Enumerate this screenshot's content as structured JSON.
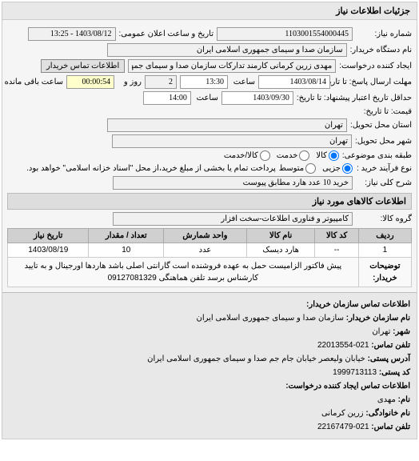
{
  "panel_title": "جزئیات اطلاعات نیاز",
  "fields": {
    "need_no_label": "شماره نیاز:",
    "need_no": "1103001554000445",
    "announce_label": "تاریخ و ساعت اعلان عمومی:",
    "announce_value": "1403/08/12 - 13:25",
    "buyer_org_label": "نام دستگاه خریدار:",
    "buyer_org": "سازمان صدا و سیمای جمهوری اسلامی ایران",
    "requester_label": "ایجاد کننده درخواست:",
    "requester": "مهدی زرین کرمانی کارمند تدارکات سازمان صدا و سیمای جمهوری اسلامی ایرا",
    "contact_btn": "اطلاعات تماس خریدار",
    "reply_deadline_label": "مهلت ارسال پاسخ: تا تاریخ:",
    "reply_date": "1403/08/14",
    "time_label": "ساعت",
    "reply_time": "13:30",
    "remaining_days": "2",
    "day_label": "روز و",
    "remaining_time": "00:00:54",
    "remaining_label": "ساعت باقی مانده",
    "validity_label": "حداقل تاریخ اعتبار پیشنهاد: تا تاریخ:",
    "validity_date": "1403/09/30",
    "validity_time": "14:00",
    "price_label": "قیمت: تا تاریخ:",
    "province_label": "استان محل تحویل:",
    "province": "تهران",
    "city_label": "شهر محل تحویل:",
    "city": "تهران",
    "category_label": "طبقه بندی موضوعی:",
    "cat_goods": "کالا",
    "cat_service": "خدمت",
    "cat_goods_service": "کالا/خدمت",
    "process_label": "نوع فرآیند خرید :",
    "proc_partial": "جزیی",
    "proc_medium": "متوسط",
    "proc_note": "پرداخت تمام یا بخشی از مبلغ خرید،از محل \"اسناد خزانه اسلامی\" خواهد بود.",
    "desc_label": "شرح کلی نیاز:",
    "desc_value": "خرید 10 عدد هارد مطابق پیوست"
  },
  "items_header": "اطلاعات کالاهای مورد نیاز",
  "group_label": "گروه کالا:",
  "group_value": "کامپیوتر و فناوری اطلاعات-سخت افزار",
  "table": {
    "headers": [
      "ردیف",
      "کد کالا",
      "نام کالا",
      "واحد شمارش",
      "تعداد / مقدار",
      "تاریخ نیاز"
    ],
    "row": [
      "1",
      "--",
      "هارد دیسک",
      "عدد",
      "10",
      "1403/08/19"
    ],
    "notes_label": "توضیحات خریدار:",
    "notes": "پیش فاکتور الزامیست حمل به عهده فروشنده است گارانتی اصلی باشد هاردها اورجینال و به تایید کارشناس برسد تلفن هماهنگی 09127081329"
  },
  "contact": {
    "header": "اطلاعات تماس سازمان خریدار:",
    "org_label": "نام سازمان خریدار:",
    "org": "سازمان صدا و سیمای جمهوری اسلامی ایران",
    "city_label": "شهر:",
    "city": "تهران",
    "phone_label": "تلفن تماس:",
    "phone": "021-22013554",
    "postal_label": "کد پستی:",
    "postal": "1999713113",
    "address_label": "آدرس پستی:",
    "address": "خیابان ولیعصر خیابان جام جم صدا و سیمای جمهوری اسلامی ایران",
    "req_contact_label": "اطلاعات تماس ایجاد کننده درخواست:",
    "name_label": "نام:",
    "name": "مهدی",
    "lname_label": "نام خانوادگی:",
    "lname": "زرین کرمانی",
    "phone2_label": "تلفن تماس:",
    "phone2": "021-22167479"
  }
}
